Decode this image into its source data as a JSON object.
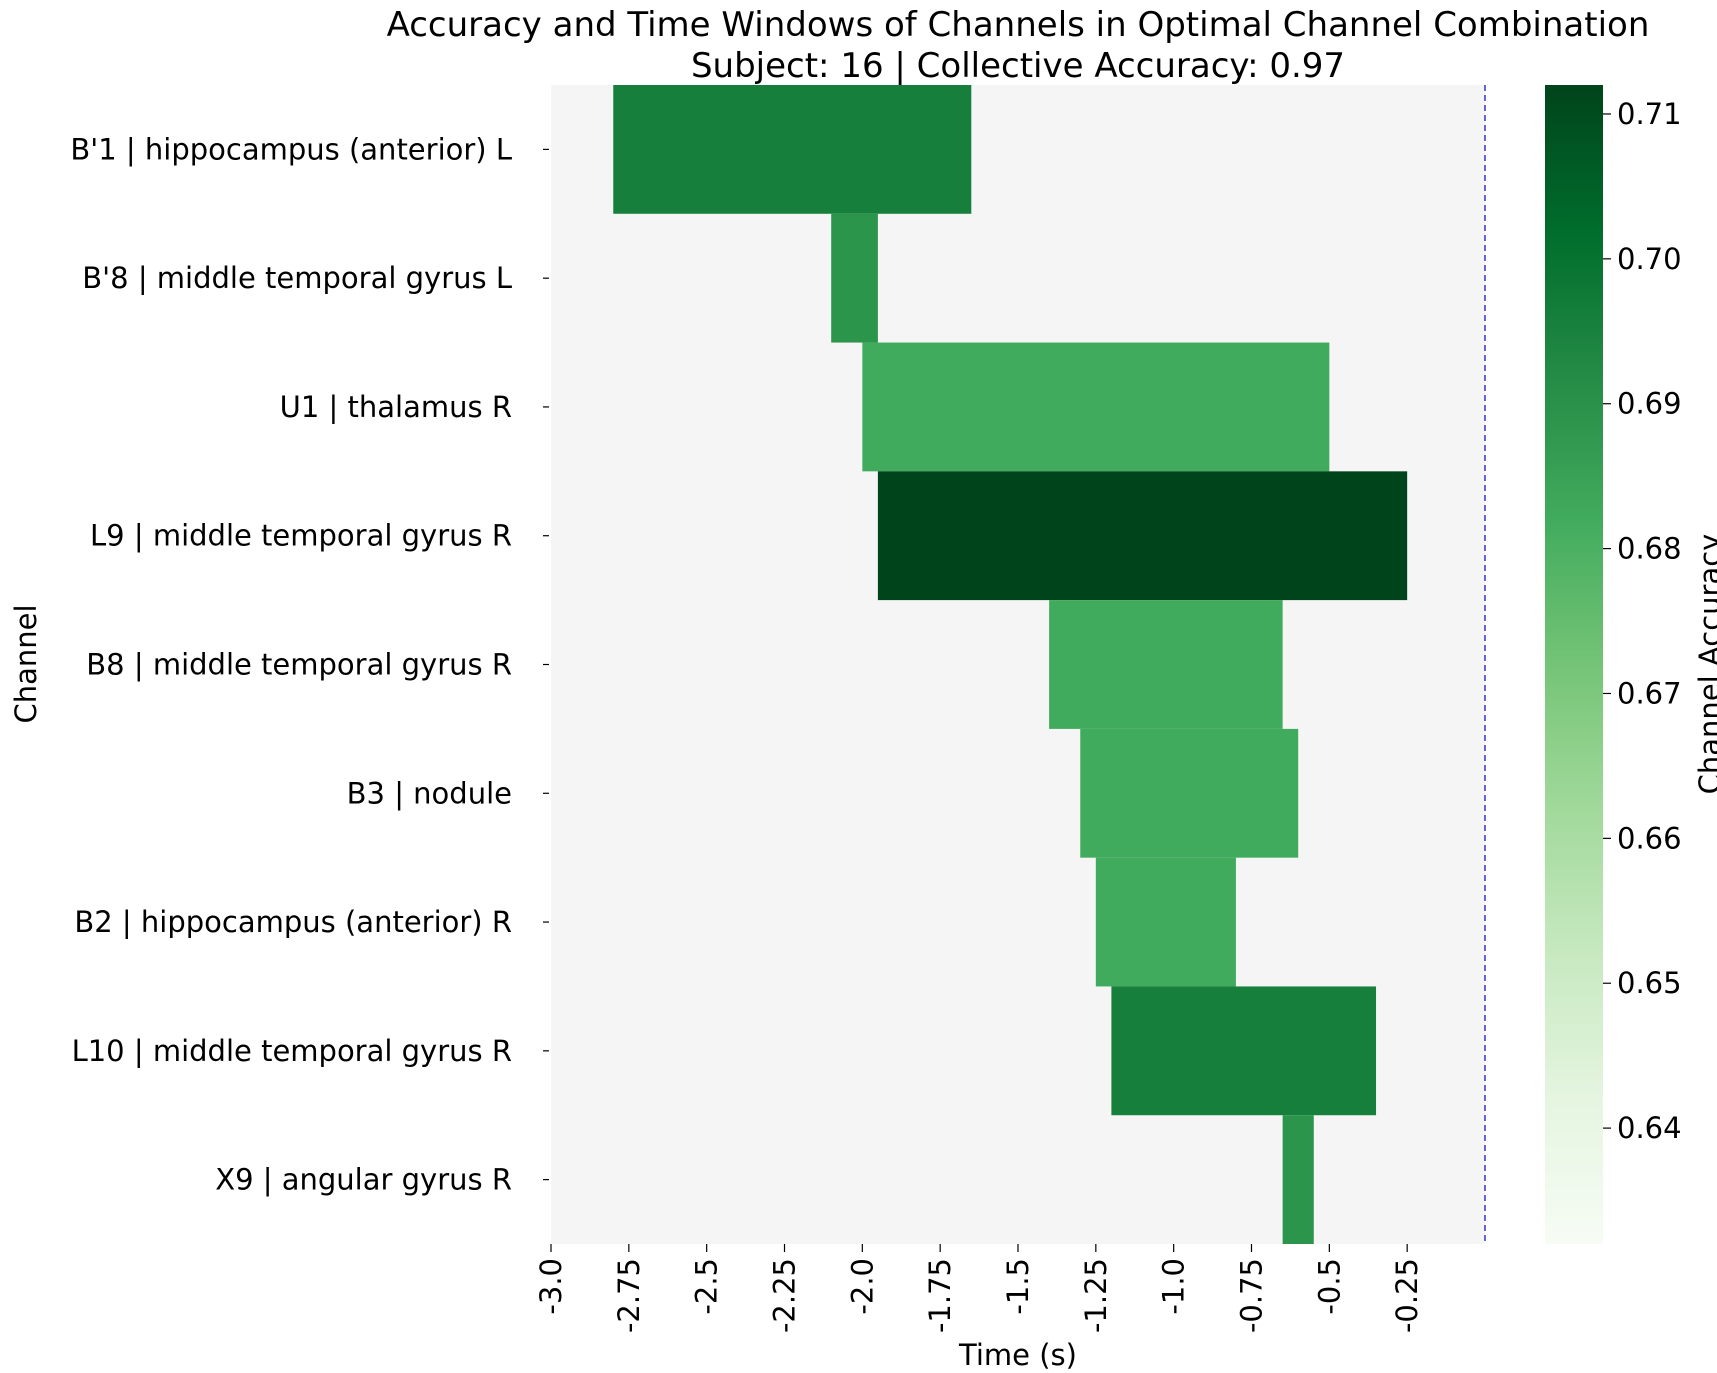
{
  "chart_data": {
    "type": "heatmap",
    "title": "Accuracy and Time Windows of Channels in Optimal Channel Combination",
    "subtitle": "Subject: 16 | Collective Accuracy: 0.97",
    "xlabel": "Time (s)",
    "ylabel": "Channel",
    "colorbar_label": "Channel Accuracy",
    "xlim": [
      -3.0,
      0.0
    ],
    "x_ticks": [
      -3.0,
      -2.75,
      -2.5,
      -2.25,
      -2.0,
      -1.75,
      -1.5,
      -1.25,
      -1.0,
      -0.75,
      -0.5,
      -0.25
    ],
    "x_tick_labels": [
      "-3.0",
      "-2.75",
      "-2.5",
      "-2.25",
      "-2.0",
      "-1.75",
      "-1.5",
      "-1.25",
      "-1.0",
      "-0.75",
      "-0.5",
      "-0.25"
    ],
    "colorbar_range": [
      0.632,
      0.712
    ],
    "colorbar_ticks": [
      0.64,
      0.65,
      0.66,
      0.67,
      0.68,
      0.69,
      0.7,
      0.71
    ],
    "colorbar_tick_labels": [
      "0.64",
      "0.65",
      "0.66",
      "0.67",
      "0.68",
      "0.69",
      "0.70",
      "0.71"
    ],
    "colormap": "Greens",
    "background_color": "#f5f5f5",
    "reference_line_x": 0.0,
    "reference_line_color": "#3333cc",
    "channels": [
      {
        "label": "B'1 | hippocampus (anterior) L",
        "start": -2.8,
        "end": -1.65,
        "accuracy": 0.696
      },
      {
        "label": "B'8 | middle temporal gyrus L",
        "start": -2.1,
        "end": -1.95,
        "accuracy": 0.689
      },
      {
        "label": "U1 | thalamus R",
        "start": -2.0,
        "end": -0.5,
        "accuracy": 0.682
      },
      {
        "label": "L9 | middle temporal gyrus R",
        "start": -1.95,
        "end": -0.25,
        "accuracy": 0.712
      },
      {
        "label": "B8 | middle temporal gyrus R",
        "start": -1.4,
        "end": -0.65,
        "accuracy": 0.682
      },
      {
        "label": "B3 | nodule",
        "start": -1.3,
        "end": -0.6,
        "accuracy": 0.682
      },
      {
        "label": "B2 | hippocampus (anterior) R",
        "start": -1.25,
        "end": -0.8,
        "accuracy": 0.682
      },
      {
        "label": "L10 | middle temporal gyrus R",
        "start": -1.2,
        "end": -0.35,
        "accuracy": 0.696
      },
      {
        "label": "X9 | angular gyrus R",
        "start": -0.65,
        "end": -0.55,
        "accuracy": 0.689
      }
    ]
  }
}
